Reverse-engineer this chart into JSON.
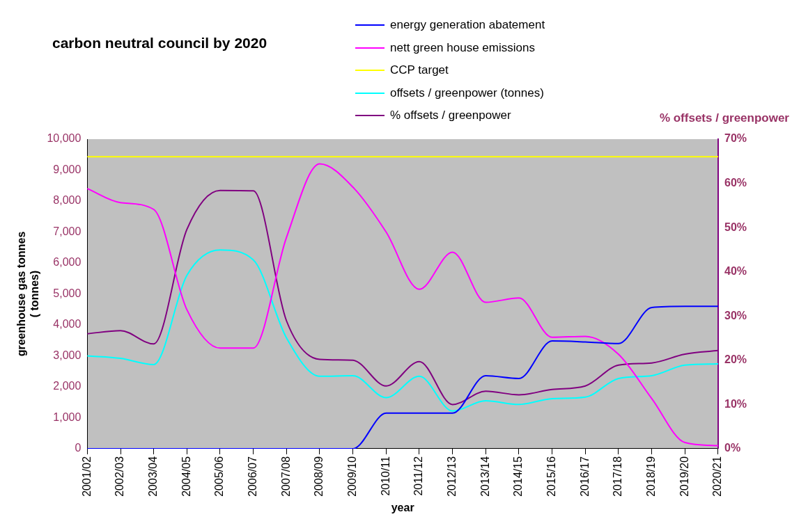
{
  "chart_data": {
    "type": "line",
    "title": "carbon neutral council by 2020",
    "xlabel": "year",
    "ylabel": "greenhouse gas tonnes\n( tonnes)",
    "y2label": "% offsets / greenpower",
    "legend": "top",
    "categories": [
      "2001/02",
      "2002/03",
      "2003/04",
      "2004/05",
      "2005/06",
      "2006/07",
      "2007/08",
      "2008/09",
      "2009/10",
      "2010/11",
      "2011/12",
      "2012/13",
      "2013/14",
      "2014/15",
      "2015/16",
      "2016/17",
      "2017/18",
      "2018/19",
      "2019/20",
      "2020/21"
    ],
    "series": [
      {
        "name": "energy generation abatement",
        "color": "#0000ff",
        "values": [
          0,
          0,
          0,
          0,
          0,
          0,
          0,
          0,
          0,
          1150,
          1150,
          1150,
          2360,
          2270,
          3480,
          3450,
          3400,
          4560,
          4600,
          4600
        ]
      },
      {
        "name": "nett green house emissions",
        "color": "#ff00ff",
        "values": [
          8400,
          7950,
          7730,
          4490,
          3250,
          3250,
          6830,
          9200,
          8450,
          7000,
          5150,
          6350,
          4730,
          4870,
          3600,
          3630,
          3050,
          1620,
          200,
          100
        ]
      },
      {
        "name": "CCP target",
        "color": "#ffff00",
        "values": [
          9430,
          9430,
          9430,
          9430,
          9430,
          9430,
          9430,
          9430,
          9430,
          9430,
          9430,
          9430,
          9430,
          9430,
          9430,
          9430,
          9430,
          9430,
          9430,
          9430
        ]
      },
      {
        "name": "offsets / greenpower (tonnes)",
        "color": "#00ffff",
        "values": [
          3000,
          2920,
          2720,
          5600,
          6420,
          6100,
          3580,
          2340,
          2360,
          1650,
          2340,
          1220,
          1550,
          1430,
          1620,
          1670,
          2270,
          2360,
          2700,
          2740
        ]
      },
      {
        "name": "% offsets / greenpower",
        "color": "#800080",
        "axis": "y2",
        "values": [
          26.0,
          26.7,
          23.7,
          49.6,
          58.4,
          58.3,
          28.9,
          20.2,
          20.0,
          14.2,
          19.7,
          10.0,
          13.0,
          12.2,
          13.4,
          14.2,
          18.9,
          19.4,
          21.4,
          22.2
        ]
      }
    ],
    "ylim": [
      0,
      10000
    ],
    "yticks": [
      0,
      {
        "value": 1000,
        "label": "1,000"
      },
      {
        "value": 2000,
        "label": "2,000"
      },
      {
        "value": 3000,
        "label": "3,000"
      },
      {
        "value": 4000,
        "label": "4,000"
      },
      {
        "value": 5000,
        "label": "5,000"
      },
      {
        "value": 6000,
        "label": "6,000"
      },
      {
        "value": 7000,
        "label": "7,000"
      },
      {
        "value": 8000,
        "label": "8,000"
      },
      {
        "value": 9000,
        "label": "9,000"
      },
      {
        "value": 10000,
        "label": "10,000"
      }
    ],
    "y2lim": [
      0,
      70
    ],
    "y2ticks": [
      {
        "value": 0,
        "label": "0%"
      },
      {
        "value": 10,
        "label": "10%"
      },
      {
        "value": 20,
        "label": "20%"
      },
      {
        "value": 30,
        "label": "30%"
      },
      {
        "value": 40,
        "label": "40%"
      },
      {
        "value": 50,
        "label": "50%"
      },
      {
        "value": 60,
        "label": "60%"
      },
      {
        "value": 70,
        "label": "70%"
      }
    ]
  }
}
